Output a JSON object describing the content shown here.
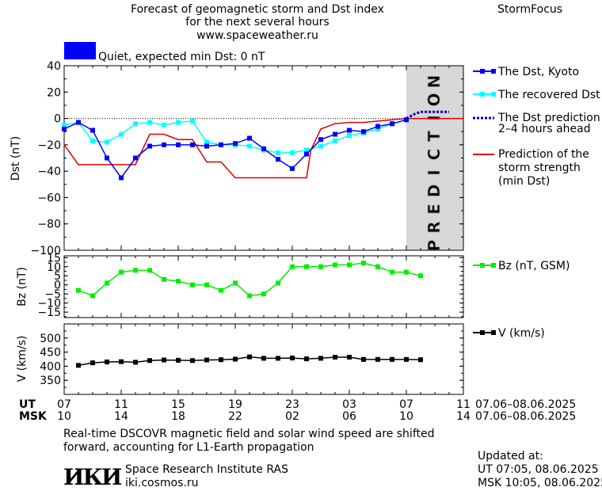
{
  "header": {
    "title_line1": "Forecast of geomagnetic storm and Dst index",
    "title_line2": "for the next several hours",
    "url": "www.spaceweather.ru",
    "app_name": "StormFocus"
  },
  "quiet_label": "Quiet, expected min Dst: 0 nT",
  "prediction_label": "PREDICTION",
  "legend": {
    "dst_kyoto": "The Dst, Kyoto",
    "recovered": "The recovered Dst",
    "prediction_line1": "The Dst prediction",
    "prediction_line2": "2–4 hours ahead",
    "storm_line1": "Prediction of the",
    "storm_line2": "storm strength",
    "storm_line3": "(min Dst)",
    "bz": "Bz (nT, GSM)",
    "v": "V (km/s)"
  },
  "time_axis": {
    "ut_label": "UT",
    "msk_label": "MSK",
    "ut_ticks": [
      "07",
      "11",
      "15",
      "19",
      "23",
      "03",
      "07",
      "11"
    ],
    "msk_ticks": [
      "10",
      "14",
      "18",
      "22",
      "02",
      "06",
      "10",
      "14"
    ],
    "ut_range": "07.06–08.06.2025",
    "msk_range": "07.06–08.06.2025"
  },
  "footer": {
    "note_line1": "Real-time DSCOVR magnetic field and solar wind speed are shifted",
    "note_line2": "forward, accounting for L1-Earth propagation",
    "logo_text": "ИКИ",
    "institute": "Space Research Institute RAS",
    "site": "iki.cosmos.ru",
    "updated_label": "Updated at:",
    "updated_ut": "UT   07:05, 08.06.2025",
    "updated_msk": "MSK 10:05, 08.06.2025"
  },
  "colors": {
    "dst_kyoto": "#0000ff",
    "recovered": "#00ffff",
    "prediction": "#0000cc",
    "storm": "#dd0000",
    "bz": "#00ee00",
    "v": "#000000",
    "prediction_band": "#d8d8d8"
  },
  "chart_data": [
    {
      "type": "line",
      "ylabel": "Dst (nT)",
      "x_unit": "hours since 07 UT on 07.06.2025",
      "xlim": [
        0,
        28
      ],
      "ylim": [
        -100,
        40
      ],
      "yticks": [
        40,
        20,
        0,
        -20,
        -40,
        -60,
        -80,
        -100
      ],
      "prediction_region": [
        24,
        28
      ],
      "series": [
        {
          "name": "The Dst, Kyoto",
          "x": [
            0,
            1,
            2,
            3,
            4,
            5,
            6,
            7,
            8,
            9,
            10,
            11,
            12,
            13,
            14,
            15,
            16,
            17,
            18,
            19,
            20,
            21,
            22,
            23,
            24
          ],
          "values": [
            -8,
            -3,
            -9,
            -30,
            -45,
            -30,
            -21,
            -20,
            -20,
            -20,
            -21,
            -20,
            -19,
            -15,
            -23,
            -31,
            -38,
            -27,
            -16,
            -12,
            -9,
            -10,
            -6,
            -4,
            -1
          ]
        },
        {
          "name": "The recovered Dst",
          "x": [
            0,
            1,
            2,
            3,
            4,
            5,
            6,
            7,
            8,
            9,
            10,
            11,
            12,
            13,
            14,
            15,
            16,
            17,
            18,
            19,
            20,
            21,
            22,
            23,
            24
          ],
          "values": [
            -5,
            -3,
            -17,
            -18,
            -12,
            -4,
            -3,
            -5,
            -3,
            -2,
            -18,
            -20,
            -20,
            -21,
            -24,
            -26,
            -26,
            -24,
            -21,
            -17,
            -13,
            -11,
            -8,
            -4,
            -1
          ]
        },
        {
          "name": "The Dst prediction",
          "x": [
            24,
            24.5,
            25,
            25.5,
            26,
            26.5,
            27
          ],
          "values": [
            0,
            3,
            5,
            5,
            5,
            5,
            5
          ]
        },
        {
          "name": "Prediction of the storm strength (min Dst)",
          "x": [
            0,
            1,
            2,
            3,
            4,
            5,
            6,
            7,
            8,
            9,
            10,
            11,
            12,
            13,
            14,
            15,
            16,
            17,
            17.3,
            18,
            19,
            20,
            21,
            22,
            23,
            24,
            28
          ],
          "values": [
            -20,
            -35,
            -35,
            -35,
            -35,
            -35,
            -12,
            -12,
            -16,
            -16,
            -33,
            -33,
            -45,
            -45,
            -45,
            -45,
            -45,
            -45,
            -24,
            -8,
            -4,
            -3,
            -3,
            -2,
            -1,
            0,
            0
          ]
        }
      ]
    },
    {
      "type": "line",
      "ylabel": "Bz (nT)",
      "xlim": [
        0,
        28
      ],
      "ylim": [
        -18,
        16
      ],
      "yticks": [
        15,
        10,
        5,
        0,
        -5,
        -10,
        -15
      ],
      "series": [
        {
          "name": "Bz (nT, GSM)",
          "x": [
            1,
            2,
            3,
            4,
            5,
            6,
            7,
            8,
            9,
            10,
            11,
            12,
            13,
            14,
            15,
            16,
            17,
            18,
            19,
            20,
            21,
            22,
            23,
            24,
            25
          ],
          "values": [
            -3,
            -6,
            1,
            7,
            8,
            8,
            3,
            2,
            0,
            0,
            -3,
            1,
            -6,
            -5,
            1,
            10,
            10,
            10,
            11,
            11,
            12,
            10,
            7,
            7,
            5
          ]
        }
      ]
    },
    {
      "type": "line",
      "ylabel": "V (km/s)",
      "xlim": [
        0,
        28
      ],
      "ylim": [
        300,
        550
      ],
      "yticks": [
        500,
        450,
        400,
        350
      ],
      "series": [
        {
          "name": "V (km/s)",
          "x": [
            1,
            2,
            3,
            4,
            5,
            6,
            7,
            8,
            9,
            10,
            11,
            12,
            13,
            14,
            15,
            16,
            17,
            18,
            19,
            20,
            21,
            22,
            23,
            24,
            25
          ],
          "values": [
            403,
            412,
            415,
            416,
            414,
            420,
            422,
            421,
            420,
            422,
            423,
            425,
            433,
            428,
            428,
            429,
            426,
            428,
            432,
            432,
            424,
            424,
            424,
            424,
            423
          ]
        }
      ]
    }
  ]
}
